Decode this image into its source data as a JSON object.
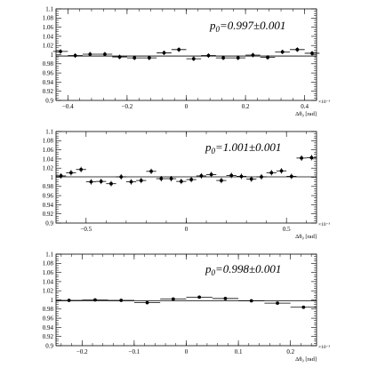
{
  "chart_data": [
    {
      "type": "scatter",
      "fit_prefix": "p",
      "fit_subscript": "0",
      "fit_value": "=0.997±0.001",
      "xlabel": "Δθ₀ [rad]",
      "x_exponent": "×10⁻³",
      "xlim": [
        -0.44,
        0.44
      ],
      "ylim": [
        0.9,
        1.1
      ],
      "y_ticks": [
        "0.9",
        "0.92",
        "0.94",
        "0.96",
        "0.98",
        "1",
        "1.02",
        "1.04",
        "1.06",
        "1.08",
        "1.1"
      ],
      "x_ticks": [
        -0.4,
        -0.2,
        0,
        0.2,
        0.4
      ],
      "x_tick_labels": [
        "−0.4",
        "−0.2",
        "0",
        "0.2",
        "0.4"
      ],
      "fit_line": 0.997,
      "series": [
        {
          "x": [
            -0.425,
            -0.375,
            -0.325,
            -0.275,
            -0.225,
            -0.175,
            -0.125,
            -0.075,
            -0.025,
            0.025,
            0.075,
            0.125,
            0.175,
            0.225,
            0.275,
            0.325,
            0.375,
            0.425
          ],
          "y": [
            1.007,
            0.998,
            1.001,
            1.001,
            0.995,
            0.993,
            0.993,
            1.004,
            1.011,
            0.991,
            0.998,
            0.993,
            0.993,
            0.999,
            0.994,
            1.006,
            1.011,
            1.003
          ],
          "xerr": 0.025,
          "yerr": 0.005
        }
      ]
    },
    {
      "type": "scatter",
      "fit_prefix": "p",
      "fit_subscript": "0",
      "fit_value": "=1.001±0.001",
      "xlabel": "Δθ₀ [rad]",
      "x_exponent": "×10⁻³",
      "xlim": [
        -0.65,
        0.65
      ],
      "ylim": [
        0.9,
        1.1
      ],
      "y_ticks": [
        "0.9",
        "0.92",
        "0.94",
        "0.96",
        "0.98",
        "1",
        "1.02",
        "1.04",
        "1.06",
        "1.08",
        "1.1"
      ],
      "x_ticks": [
        -0.5,
        0,
        0.5
      ],
      "x_tick_labels": [
        "−0.5",
        "0",
        "0.5"
      ],
      "fit_line": 1.001,
      "series": [
        {
          "x": [
            -0.625,
            -0.575,
            -0.525,
            -0.475,
            -0.425,
            -0.375,
            -0.325,
            -0.275,
            -0.225,
            -0.175,
            -0.125,
            -0.075,
            -0.025,
            0.025,
            0.075,
            0.125,
            0.175,
            0.225,
            0.275,
            0.325,
            0.375,
            0.425,
            0.475,
            0.525,
            0.575,
            0.625
          ],
          "y": [
            1.003,
            1.01,
            1.017,
            0.99,
            0.991,
            0.986,
            1.001,
            0.99,
            0.993,
            1.013,
            0.997,
            0.997,
            0.991,
            0.995,
            1.003,
            1.006,
            0.993,
            1.004,
            1.002,
            0.996,
            1.001,
            1.01,
            1.014,
            1.002,
            1.042,
            1.043
          ],
          "xerr": 0.025,
          "yerr": 0.006
        }
      ]
    },
    {
      "type": "scatter",
      "fit_prefix": "p",
      "fit_subscript": "0",
      "fit_value": "=0.998±0.001",
      "xlabel": "Δθ₀ [rad]",
      "x_exponent": "×10⁻³",
      "xlim": [
        -0.25,
        0.25
      ],
      "ylim": [
        0.9,
        1.1
      ],
      "y_ticks": [
        "0.9",
        "0.92",
        "0.94",
        "0.96",
        "0.98",
        "1",
        "1.02",
        "1.04",
        "1.06",
        "1.08",
        "1.1"
      ],
      "x_ticks": [
        -0.2,
        -0.1,
        0,
        0.1,
        0.2
      ],
      "x_tick_labels": [
        "−0.2",
        "−0.1",
        "0",
        "0.1",
        "0.2"
      ],
      "fit_line": 0.998,
      "series": [
        {
          "x": [
            -0.225,
            -0.175,
            -0.125,
            -0.075,
            -0.025,
            0.025,
            0.075,
            0.125,
            0.175,
            0.225
          ],
          "y": [
            0.999,
            1.0,
            0.999,
            0.994,
            1.002,
            1.006,
            1.003,
            0.998,
            0.993,
            0.984
          ],
          "xerr": 0.025,
          "yerr": 0.003
        }
      ]
    }
  ]
}
